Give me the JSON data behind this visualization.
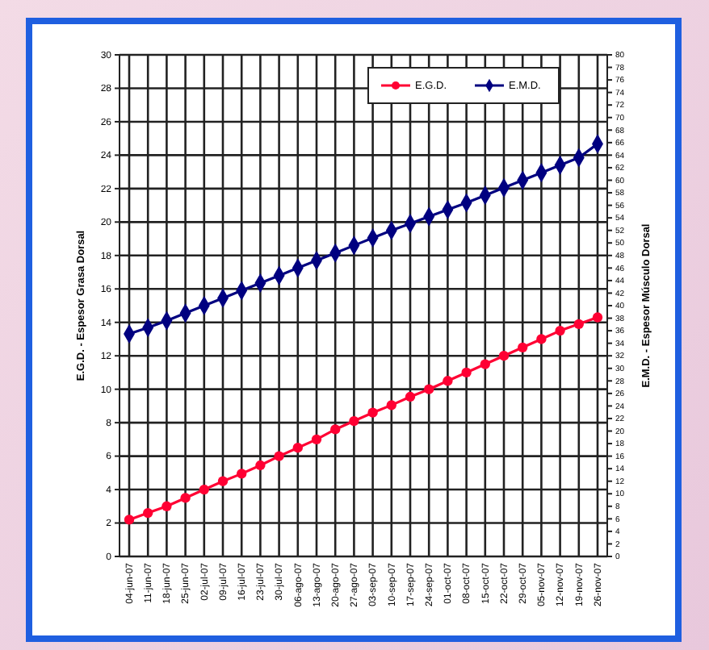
{
  "chart_data": {
    "type": "line",
    "categories": [
      "04-jun-07",
      "11-jun-07",
      "18-jun-07",
      "25-jun-07",
      "02-jul-07",
      "09-jul-07",
      "16-jul-07",
      "23-jul-07",
      "30-jul-07",
      "06-ago-07",
      "13-ago-07",
      "20-ago-07",
      "27-ago-07",
      "03-sep-07",
      "10-sep-07",
      "17-sep-07",
      "24-sep-07",
      "01-oct-07",
      "08-oct-07",
      "15-oct-07",
      "22-oct-07",
      "29-oct-07",
      "05-nov-07",
      "12-nov-07",
      "19-nov-07",
      "26-nov-07"
    ],
    "series": [
      {
        "name": "E.G.D.",
        "color": "#ff0033",
        "marker": "circle",
        "values": [
          2.2,
          2.6,
          3.0,
          3.5,
          4.0,
          4.5,
          4.95,
          5.45,
          6.0,
          6.5,
          7.0,
          7.6,
          8.1,
          8.6,
          9.05,
          9.55,
          10.0,
          10.5,
          11.0,
          11.5,
          12.0,
          12.5,
          13.0,
          13.5,
          13.9,
          14.3
        ]
      },
      {
        "name": "E.M.D.",
        "color": "#000080",
        "marker": "diamond",
        "axis": "y2",
        "values": [
          35.5,
          36.5,
          37.6,
          38.8,
          40.0,
          41.2,
          42.4,
          43.6,
          44.8,
          46.0,
          47.2,
          48.4,
          49.6,
          50.8,
          52.0,
          53.1,
          54.2,
          55.3,
          56.4,
          57.6,
          58.8,
          60.0,
          61.2,
          62.4,
          63.6,
          65.8
        ]
      }
    ],
    "ylabel": "E.G.D. - Espesor Grasa Dorsal",
    "y2label": "E.M.D. - Espesor Músculo Dorsal",
    "ylim": [
      0,
      30
    ],
    "yticks": [
      0,
      2,
      4,
      6,
      8,
      10,
      12,
      14,
      16,
      18,
      20,
      22,
      24,
      26,
      28,
      30
    ],
    "y2lim": [
      0,
      80
    ],
    "y2ticks": [
      0,
      2,
      4,
      6,
      8,
      10,
      12,
      14,
      16,
      18,
      20,
      22,
      24,
      26,
      28,
      30,
      32,
      34,
      36,
      38,
      40,
      42,
      44,
      46,
      48,
      50,
      52,
      54,
      56,
      58,
      60,
      62,
      64,
      66,
      68,
      70,
      72,
      74,
      76,
      78,
      80
    ],
    "grid": true,
    "legend": "top right",
    "line_style": "solid"
  }
}
